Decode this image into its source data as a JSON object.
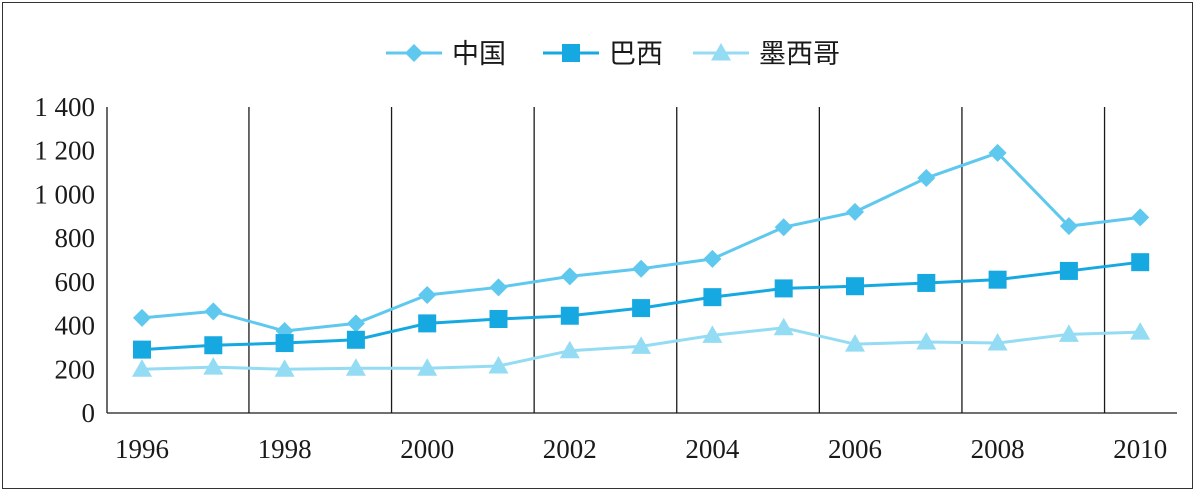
{
  "chart_data": {
    "type": "line",
    "x": [
      1996,
      1997,
      1998,
      1999,
      2000,
      2001,
      2002,
      2003,
      2004,
      2005,
      2006,
      2007,
      2008,
      2009,
      2010
    ],
    "xticks": [
      "1996",
      "1998",
      "2000",
      "2002",
      "2004",
      "2006",
      "2008",
      "2010"
    ],
    "yticks": [
      "0",
      "200",
      "400",
      "600",
      "800",
      "1 000",
      "1 200",
      "1 400"
    ],
    "ylim": [
      0,
      1400
    ],
    "grid": "vertical lines at even years",
    "legend_position": "top-center",
    "series": [
      {
        "name": "中国",
        "marker": "diamond",
        "color": "#5fc8ee",
        "values": [
          435,
          465,
          375,
          410,
          540,
          575,
          625,
          660,
          705,
          850,
          920,
          1075,
          1190,
          855,
          895
        ]
      },
      {
        "name": "巴西",
        "marker": "square",
        "color": "#16a9e1",
        "values": [
          290,
          310,
          320,
          335,
          410,
          430,
          445,
          480,
          530,
          570,
          580,
          595,
          610,
          650,
          690
        ]
      },
      {
        "name": "墨西哥",
        "marker": "triangle",
        "color": "#94dcf3",
        "values": [
          200,
          210,
          200,
          205,
          205,
          215,
          285,
          305,
          355,
          390,
          315,
          325,
          320,
          360,
          370
        ]
      }
    ]
  }
}
